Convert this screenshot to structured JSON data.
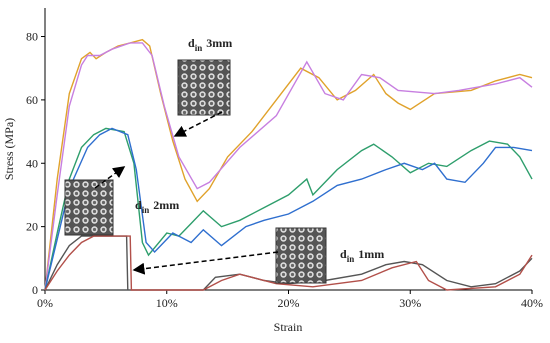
{
  "chart_data": {
    "type": "line",
    "x_label": "Strain",
    "y_label": "Stress (MPa)",
    "xlim": [
      0,
      40
    ],
    "ylim": [
      0,
      89
    ],
    "xticks": [
      {
        "value": 0,
        "label": "0%"
      },
      {
        "value": 10,
        "label": "10%"
      },
      {
        "value": 20,
        "label": "20%"
      },
      {
        "value": 30,
        "label": "30%"
      },
      {
        "value": 40,
        "label": "40%"
      }
    ],
    "yticks": [
      0,
      20,
      40,
      60,
      80
    ],
    "series": [
      {
        "color": "#e0a22b",
        "x": [
          0,
          1,
          2,
          3,
          3.7,
          4.2,
          5,
          6,
          7,
          8,
          8.6,
          9.5,
          10.5,
          11.5,
          12.5,
          13.5,
          15,
          17,
          19,
          21,
          22.5,
          24,
          25.5,
          27,
          28,
          29,
          30,
          32,
          35,
          37,
          39,
          40
        ],
        "values": [
          0,
          35,
          62,
          73,
          75,
          73,
          75,
          77,
          78,
          79,
          77,
          62,
          47,
          35,
          28,
          32,
          42,
          50,
          60,
          70,
          67,
          60,
          63,
          68,
          62,
          59,
          57,
          62,
          63,
          66,
          68,
          67
        ]
      },
      {
        "color": "#c77fe0",
        "x": [
          0,
          1,
          2,
          3,
          3.5,
          4.5,
          5.5,
          7,
          8,
          8.8,
          9.8,
          11,
          12.5,
          13.5,
          16,
          19,
          21.5,
          23,
          24.5,
          26,
          27.5,
          29,
          32,
          34,
          37,
          39,
          40
        ],
        "values": [
          0,
          30,
          58,
          71,
          74,
          74,
          76,
          78,
          78,
          74,
          58,
          42,
          32,
          34,
          45,
          55,
          72,
          62,
          60,
          68,
          67,
          63,
          62,
          63,
          65,
          67,
          64
        ]
      },
      {
        "color": "#2e9e6c",
        "x": [
          0,
          1,
          2,
          3,
          4,
          5,
          6.5,
          7.3,
          8,
          8.5,
          10,
          11,
          12,
          13,
          14.5,
          16,
          18,
          20,
          21.5,
          22,
          24,
          26,
          27,
          28.5,
          30,
          31.5,
          33,
          35,
          36.5,
          38,
          39,
          40
        ],
        "values": [
          0,
          18,
          35,
          45,
          49,
          51,
          50,
          40,
          15,
          11,
          18,
          17,
          21,
          25,
          20,
          22,
          26,
          30,
          35,
          30,
          38,
          44,
          46,
          42,
          37,
          40,
          39,
          44,
          47,
          46,
          42,
          35
        ]
      },
      {
        "color": "#2f6fcf",
        "x": [
          0,
          1,
          2,
          3.5,
          4.5,
          5.5,
          6.8,
          7.5,
          8.3,
          9,
          10.5,
          12,
          13,
          14.5,
          16.5,
          18,
          20,
          22,
          24,
          26,
          28,
          29.5,
          31,
          32,
          33,
          34.5,
          36,
          37,
          38.5,
          40
        ],
        "values": [
          0,
          16,
          32,
          45,
          49,
          51,
          49,
          38,
          15,
          12,
          18,
          15,
          19,
          14,
          20,
          22,
          24,
          28,
          33,
          35,
          38,
          40,
          38,
          40,
          35,
          34,
          40,
          45,
          45,
          44
        ]
      },
      {
        "color": "#555555",
        "x": [
          0,
          1,
          2,
          3,
          5,
          6.7,
          6.8,
          13,
          14,
          16,
          18,
          20,
          23,
          26,
          28,
          29.5,
          31,
          33,
          35,
          37,
          39,
          40
        ],
        "values": [
          0,
          8,
          14,
          17,
          17,
          17,
          0,
          0,
          4,
          5,
          3,
          2,
          3,
          5,
          8,
          9,
          8,
          3,
          1,
          2,
          6,
          10
        ]
      },
      {
        "color": "#b2504a",
        "x": [
          0,
          1,
          2,
          3,
          4,
          5.5,
          7,
          7.1,
          13,
          14.5,
          16,
          19,
          22,
          26,
          28.5,
          30.5,
          31.5,
          33,
          37,
          39,
          40
        ],
        "values": [
          0,
          6,
          11,
          15,
          17,
          17,
          17,
          0,
          0,
          3,
          5,
          2,
          1,
          3,
          7,
          9,
          3,
          0,
          1,
          5,
          11
        ]
      }
    ],
    "annotations": [
      {
        "text": "d",
        "sub": "in",
        "suffix": "3mm"
      },
      {
        "text": "d",
        "sub": "in",
        "suffix": "2mm"
      },
      {
        "text": "d",
        "sub": "in",
        "suffix": "1mm"
      }
    ]
  }
}
